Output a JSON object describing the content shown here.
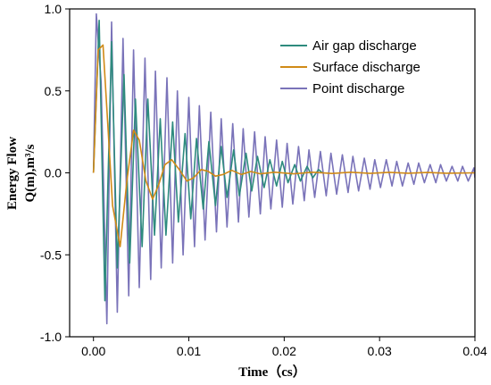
{
  "chart_data": {
    "type": "line",
    "title": "",
    "xlabel": "Time（cs）",
    "ylabel_line1": "Energy Flow",
    "ylabel_line2": "Q(m),m³/s",
    "xlim": [
      -0.0025,
      0.04
    ],
    "ylim": [
      -1.0,
      1.0
    ],
    "xticks": [
      0.0,
      0.01,
      0.02,
      0.03,
      0.04
    ],
    "xtick_labels": [
      "0.00",
      "0.01",
      "0.02",
      "0.03",
      "0.04"
    ],
    "yticks": [
      -1.0,
      -0.5,
      0.0,
      0.5,
      1.0
    ],
    "ytick_labels": [
      "-1.0",
      "-0.5",
      "0.0",
      "0.5",
      "1.0"
    ],
    "grid": false,
    "legend_position": "top-right",
    "series": [
      {
        "name": "Air gap discharge",
        "color": "#2e8b7e",
        "x": [
          0.0,
          0.0006,
          0.0012,
          0.0019,
          0.0025,
          0.0032,
          0.0038,
          0.0044,
          0.0051,
          0.0057,
          0.0064,
          0.007,
          0.0076,
          0.0083,
          0.0089,
          0.0096,
          0.0102,
          0.0108,
          0.0115,
          0.0121,
          0.0128,
          0.0134,
          0.014,
          0.0147,
          0.0153,
          0.016,
          0.0166,
          0.0172,
          0.0179,
          0.0185,
          0.0192,
          0.0198,
          0.0204,
          0.0211,
          0.0217,
          0.0224,
          0.023,
          0.0236,
          0.024
        ],
        "values": [
          0.0,
          0.93,
          -0.78,
          0.8,
          -0.58,
          0.6,
          -0.55,
          0.45,
          -0.45,
          0.45,
          -0.38,
          0.33,
          -0.38,
          0.31,
          -0.3,
          0.24,
          -0.28,
          0.21,
          -0.22,
          0.19,
          -0.2,
          0.16,
          -0.15,
          0.14,
          -0.14,
          0.12,
          -0.11,
          0.1,
          -0.09,
          0.08,
          -0.08,
          0.07,
          -0.06,
          0.05,
          -0.05,
          0.04,
          -0.03,
          0.02,
          0.0
        ]
      },
      {
        "name": "Surface discharge",
        "color": "#d08a17",
        "x": [
          0.0,
          0.0005,
          0.001,
          0.0015,
          0.002,
          0.0028,
          0.0035,
          0.0042,
          0.0048,
          0.0055,
          0.0062,
          0.0068,
          0.0075,
          0.0082,
          0.009,
          0.0098,
          0.0105,
          0.0113,
          0.012,
          0.0128,
          0.0136,
          0.0145,
          0.0155,
          0.0165,
          0.0175,
          0.019,
          0.021,
          0.023,
          0.025,
          0.027,
          0.029,
          0.031,
          0.033,
          0.035,
          0.037,
          0.04
        ],
        "values": [
          0.0,
          0.75,
          0.78,
          0.3,
          -0.2,
          -0.45,
          -0.05,
          0.26,
          0.2,
          -0.05,
          -0.16,
          -0.08,
          0.05,
          0.08,
          0.02,
          -0.05,
          -0.03,
          0.02,
          0.01,
          -0.02,
          -0.01,
          0.015,
          -0.01,
          0.008,
          -0.006,
          0.004,
          -0.006,
          0.004,
          -0.004,
          0.004,
          -0.003,
          0.003,
          -0.002,
          0.002,
          -0.002,
          0.0
        ]
      },
      {
        "name": "Point discharge",
        "color": "#7a73b9",
        "x": [
          0.0,
          0.0003,
          0.0008,
          0.0014,
          0.0019,
          0.0025,
          0.0031,
          0.0037,
          0.0042,
          0.0048,
          0.0054,
          0.006,
          0.0065,
          0.0071,
          0.0077,
          0.0083,
          0.0088,
          0.0094,
          0.01,
          0.0106,
          0.0111,
          0.0117,
          0.0123,
          0.0129,
          0.0134,
          0.014,
          0.0146,
          0.0152,
          0.0157,
          0.0163,
          0.0169,
          0.0175,
          0.018,
          0.0186,
          0.0192,
          0.0198,
          0.0203,
          0.0209,
          0.0215,
          0.0221,
          0.0226,
          0.0232,
          0.0238,
          0.0244,
          0.0249,
          0.0255,
          0.0261,
          0.0267,
          0.0272,
          0.0278,
          0.0284,
          0.029,
          0.0295,
          0.0301,
          0.0307,
          0.0313,
          0.0318,
          0.0324,
          0.033,
          0.0336,
          0.0341,
          0.0347,
          0.0353,
          0.0359,
          0.0364,
          0.037,
          0.0376,
          0.0382,
          0.0387,
          0.0393,
          0.0399,
          0.04
        ],
        "values": [
          0.0,
          0.97,
          0.55,
          -0.92,
          0.92,
          -0.85,
          0.82,
          -0.75,
          0.75,
          -0.7,
          0.7,
          -0.65,
          0.62,
          -0.58,
          0.58,
          -0.55,
          0.5,
          -0.5,
          0.46,
          -0.45,
          0.41,
          -0.41,
          0.37,
          -0.36,
          0.33,
          -0.33,
          0.3,
          -0.3,
          0.27,
          -0.27,
          0.25,
          -0.25,
          0.22,
          -0.22,
          0.2,
          -0.21,
          0.18,
          -0.19,
          0.16,
          -0.17,
          0.14,
          -0.15,
          0.13,
          -0.14,
          0.12,
          -0.13,
          0.11,
          -0.12,
          0.1,
          -0.11,
          0.09,
          -0.1,
          0.08,
          -0.09,
          0.08,
          -0.08,
          0.07,
          -0.08,
          0.06,
          -0.07,
          0.06,
          -0.06,
          0.05,
          -0.06,
          0.05,
          -0.05,
          0.04,
          -0.05,
          0.04,
          -0.05,
          0.03,
          -0.03
        ]
      }
    ]
  }
}
